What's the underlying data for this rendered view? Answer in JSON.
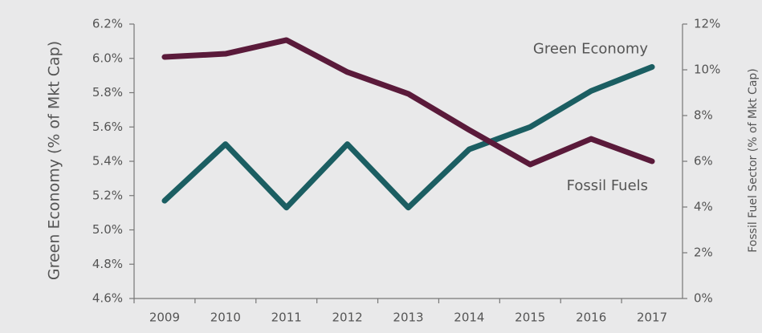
{
  "chart_data": {
    "type": "line",
    "categories": [
      "2009",
      "2010",
      "2011",
      "2012",
      "2013",
      "2014",
      "2015",
      "2016",
      "2017"
    ],
    "series": [
      {
        "name": "Green Economy",
        "color": "#1b5e62",
        "axis": "y",
        "values": [
          5.17,
          5.5,
          5.13,
          5.5,
          5.13,
          5.47,
          5.6,
          5.81,
          5.95
        ]
      },
      {
        "name": "Fossil Fuels",
        "color": "#5a1a3a",
        "axis": "y2",
        "values": [
          10.56,
          10.7,
          11.3,
          9.9,
          8.95,
          7.37,
          5.86,
          6.98,
          6.0
        ]
      }
    ],
    "ylabel": "Green Economy (% of Mkt Cap)",
    "y2label": "Fossil Fuel Sector (% of Mkt Cap)",
    "ylim": [
      4.6,
      6.2
    ],
    "yticks": [
      {
        "value": 4.6,
        "label": "4.6%"
      },
      {
        "value": 4.8,
        "label": "4.8%"
      },
      {
        "value": 5.0,
        "label": "5.0%"
      },
      {
        "value": 5.2,
        "label": "5.2%"
      },
      {
        "value": 5.4,
        "label": "5.4%"
      },
      {
        "value": 5.6,
        "label": "5.6%"
      },
      {
        "value": 5.8,
        "label": "5.8%"
      },
      {
        "value": 6.0,
        "label": "6.0%"
      },
      {
        "value": 6.2,
        "label": "6.2%"
      }
    ],
    "y2lim": [
      0,
      12
    ],
    "y2ticks": [
      {
        "value": 0,
        "label": "0%"
      },
      {
        "value": 2,
        "label": "2%"
      },
      {
        "value": 4,
        "label": "4%"
      },
      {
        "value": 6,
        "label": "6%"
      },
      {
        "value": 8,
        "label": "8%"
      },
      {
        "value": 10,
        "label": "10%"
      },
      {
        "value": 12,
        "label": "12%"
      }
    ]
  }
}
